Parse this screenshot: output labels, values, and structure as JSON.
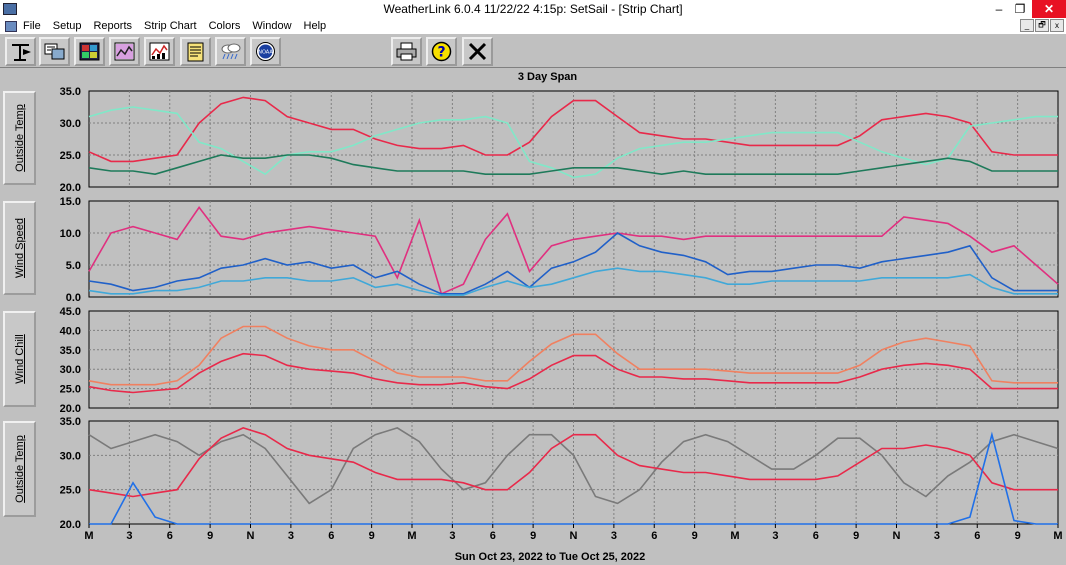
{
  "window": {
    "title": "WeatherLink 6.0.4  11/22/22   4:15p: SetSail - [Strip Chart]",
    "minimize": "–",
    "maximize": "❐",
    "close": "✕"
  },
  "menu": [
    "File",
    "Setup",
    "Reports",
    "Strip Chart",
    "Colors",
    "Window",
    "Help"
  ],
  "mdi_controls": [
    "_",
    "🗗",
    "x"
  ],
  "toolbar": {
    "buttons": [
      {
        "name": "station-icon"
      },
      {
        "name": "download-icon"
      },
      {
        "name": "bulletin-icon"
      },
      {
        "name": "summary-icon"
      },
      {
        "name": "strip-chart-icon"
      },
      {
        "name": "notepad-icon"
      },
      {
        "name": "weather-icon"
      },
      {
        "name": "noaa-icon"
      },
      {
        "name": "print-icon"
      },
      {
        "name": "help-icon"
      },
      {
        "name": "close-icon"
      }
    ],
    "noaa_text": "NOAA"
  },
  "span_title": "3 Day Span",
  "date_range": "Sun Oct 23, 2022  to  Tue Oct 25, 2022",
  "colors": {
    "plot_bg": "#c0c0c0",
    "grid": "#808080"
  },
  "chart_data": [
    {
      "type": "line",
      "label": "Outside Temp",
      "ylim": [
        20,
        35
      ],
      "yticks": [
        "35.0",
        "30.0",
        "25.0",
        "20.0"
      ],
      "series": [
        {
          "color": "#e8294a",
          "values": [
            25.5,
            24,
            24,
            24.5,
            25,
            30,
            33,
            34,
            33.5,
            31,
            30,
            29,
            29,
            27.5,
            26.5,
            26,
            26,
            26.5,
            25,
            25,
            27,
            31,
            33.5,
            33.5,
            31,
            28.5,
            28,
            27.5,
            27.5,
            27,
            26.5,
            26.5,
            26.5,
            26.5,
            26.5,
            28,
            30.5,
            31,
            31.5,
            31,
            30,
            25.5,
            25,
            25,
            25
          ]
        },
        {
          "color": "#80e8c8",
          "values": [
            31,
            32,
            32.5,
            32,
            31.5,
            27,
            26,
            24,
            22,
            25,
            25.5,
            25.5,
            26.5,
            28,
            29,
            30,
            30.5,
            30.5,
            31,
            30,
            24,
            23,
            21.5,
            22,
            24.5,
            26,
            26.5,
            27,
            27,
            27.5,
            28,
            28.5,
            28.5,
            28.5,
            28.5,
            27,
            25.5,
            24.5,
            23.5,
            24.5,
            29.5,
            30,
            30.5,
            31,
            31
          ]
        },
        {
          "color": "#1e7a5a",
          "values": [
            23,
            22.5,
            22.5,
            22,
            23,
            24,
            25,
            24.5,
            24.5,
            25,
            25,
            24.5,
            23.5,
            23,
            22.5,
            22.5,
            22.5,
            22.5,
            22,
            22,
            22,
            22.5,
            23,
            23,
            23,
            22.5,
            22,
            22.5,
            22,
            22,
            22,
            22,
            22,
            22,
            22,
            22.5,
            23,
            23.5,
            24,
            24.5,
            24,
            22.5,
            22.5,
            22.5,
            22.5
          ]
        }
      ]
    },
    {
      "type": "line",
      "label": "Wind Speed",
      "ylim": [
        0,
        15
      ],
      "yticks": [
        "15.0",
        "10.0",
        "5.0",
        "0.0"
      ],
      "series": [
        {
          "color": "#e0307f",
          "values": [
            4,
            10,
            11,
            10,
            9,
            14,
            9.5,
            9,
            10,
            10.5,
            11,
            10.5,
            10,
            9.5,
            3,
            12,
            0.5,
            2,
            9,
            13,
            4,
            8,
            9,
            9.5,
            10,
            9.5,
            9.5,
            9,
            9.5,
            9.5,
            9.5,
            9.5,
            9.5,
            9.5,
            9.5,
            9.5,
            9.5,
            12.5,
            12,
            11.5,
            9.5,
            7,
            8,
            5,
            2
          ]
        },
        {
          "color": "#2060c8",
          "values": [
            2.5,
            2,
            1,
            1.5,
            2.5,
            3,
            4.5,
            5,
            6,
            5,
            5.5,
            4.5,
            5,
            3,
            4,
            2,
            0.5,
            0.5,
            2,
            4,
            1.5,
            4.5,
            5.5,
            7,
            10,
            8,
            7,
            6.5,
            5.5,
            3.5,
            4,
            4,
            4.5,
            5,
            5,
            4.5,
            5.5,
            6,
            6.5,
            7,
            8,
            3,
            1,
            1,
            1
          ]
        },
        {
          "color": "#40a8d8",
          "values": [
            1,
            0.5,
            0.5,
            1,
            1,
            1.5,
            2.5,
            2.5,
            3,
            3,
            2.5,
            2.5,
            3,
            1.5,
            2,
            1,
            0.3,
            0.3,
            1.5,
            2.5,
            1.5,
            2,
            3,
            4,
            4.5,
            4,
            4,
            3.5,
            3,
            2,
            2,
            2.5,
            2.5,
            2.5,
            2.5,
            2.5,
            3,
            3,
            3,
            3,
            3.5,
            1.5,
            0.5,
            0.5,
            0.5
          ]
        }
      ]
    },
    {
      "type": "line",
      "label": "Wind Chill",
      "ylim": [
        20,
        45
      ],
      "yticks": [
        "45.0",
        "40.0",
        "35.0",
        "30.0",
        "25.0",
        "20.0"
      ],
      "series": [
        {
          "color": "#f08060",
          "values": [
            27,
            26,
            26,
            26,
            27,
            31,
            38,
            41,
            41,
            38,
            36,
            35,
            35,
            32,
            29,
            28,
            28,
            28,
            27,
            27,
            32,
            36.5,
            39,
            39,
            34,
            30,
            30,
            30,
            30,
            29.5,
            29,
            29,
            29,
            29,
            29,
            31,
            35,
            37,
            38,
            37,
            36,
            27,
            26.5,
            26.5,
            26.5
          ]
        },
        {
          "color": "#e8294a",
          "values": [
            25.5,
            24.5,
            24,
            24.5,
            25,
            29,
            32,
            34,
            33.5,
            31,
            30,
            29.5,
            29,
            27.5,
            26.5,
            26,
            26,
            26.5,
            25.5,
            25,
            27.5,
            31,
            33.5,
            33.5,
            30,
            28,
            28,
            27.5,
            27.5,
            27,
            26.5,
            26.5,
            26.5,
            26.5,
            26.5,
            28,
            30,
            31,
            31.5,
            31,
            30,
            25,
            25,
            25,
            25
          ]
        }
      ]
    },
    {
      "type": "line",
      "label": "Outside Temp",
      "ylim": [
        20,
        35
      ],
      "yticks": [
        "35.0",
        "30.0",
        "25.0",
        "20.0"
      ],
      "series": [
        {
          "color": "#7a7a7a",
          "values": [
            33,
            31,
            32,
            33,
            32,
            30,
            32,
            33,
            31,
            27,
            23,
            25,
            31,
            33,
            34,
            32,
            28,
            25,
            26,
            30,
            33,
            33,
            30,
            24,
            23,
            25,
            29,
            32,
            33,
            32,
            30,
            28,
            28,
            30,
            32.5,
            32.5,
            30,
            26,
            24,
            27,
            29,
            32,
            33,
            32,
            31
          ]
        },
        {
          "color": "#e8294a",
          "values": [
            25,
            24.5,
            24,
            24.5,
            25,
            29.5,
            32.5,
            34,
            33,
            31,
            30,
            29.5,
            29,
            27.5,
            26.5,
            26.5,
            26.5,
            26,
            25,
            25,
            27.5,
            31,
            33,
            33,
            30,
            28.5,
            28,
            27.5,
            27.5,
            27,
            26.5,
            26.5,
            26.5,
            26.5,
            27,
            29,
            31,
            31,
            31.5,
            31,
            30,
            26,
            25,
            25,
            25
          ]
        },
        {
          "color": "#2070e8",
          "values": [
            20,
            20,
            26,
            21,
            20,
            20,
            20,
            20,
            20,
            20,
            20,
            20,
            20,
            20,
            20,
            20,
            20,
            20,
            20,
            20,
            20,
            20,
            20,
            20,
            20,
            20,
            20,
            20,
            20,
            20,
            20,
            20,
            20,
            20,
            20,
            20,
            20,
            20,
            20,
            20,
            21,
            33,
            20.5,
            20,
            20
          ]
        }
      ]
    }
  ],
  "x_labels": [
    "M",
    "3",
    "6",
    "9",
    "N",
    "3",
    "6",
    "9",
    "M",
    "3",
    "6",
    "9",
    "N",
    "3",
    "6",
    "9",
    "M",
    "3",
    "6",
    "9",
    "N",
    "3",
    "6",
    "9",
    "M"
  ]
}
